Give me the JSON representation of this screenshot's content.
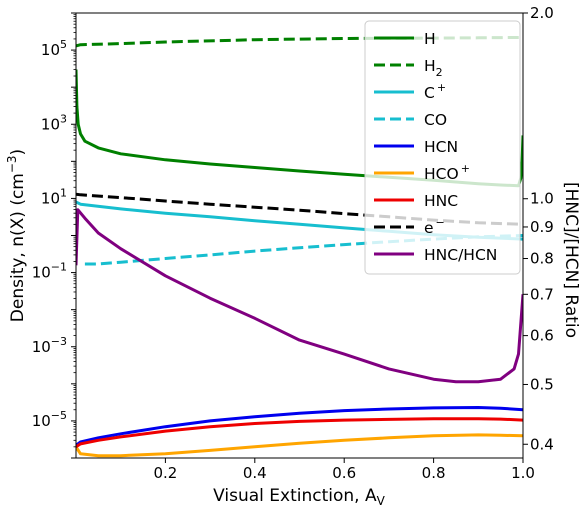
{
  "chart_data": {
    "type": "line",
    "xlabel": "Visual Extinction, A",
    "xlabel_sub": "V",
    "ylabel": "Density, n(X) (cm",
    "ylabel_sup": "−3",
    "ylabel_end": ")",
    "y2label": "[HNC]/[HCN] Ratio",
    "y2label_color": "#800080",
    "xlim": [
      0.0,
      1.0
    ],
    "ylim_log10": [
      -6.0,
      6.0
    ],
    "y_scale": "log",
    "y2lim": [
      0.38,
      2.0
    ],
    "y2_scale": "log",
    "xticks": [
      0.2,
      0.4,
      0.6,
      0.8,
      1.0
    ],
    "xtick_labels": [
      "0.2",
      "0.4",
      "0.6",
      "0.8",
      "1.0"
    ],
    "yticks": [
      {
        "mant": "10",
        "exp": "5",
        "exp_value": 5
      },
      {
        "mant": "10",
        "exp": "3",
        "exp_value": 3
      },
      {
        "mant": "10",
        "exp": "1",
        "exp_value": 1
      },
      {
        "mant": "10",
        "exp": "−1",
        "exp_value": -1
      },
      {
        "mant": "10",
        "exp": "−3",
        "exp_value": -3
      },
      {
        "mant": "10",
        "exp": "−5",
        "exp_value": -5
      }
    ],
    "y2ticks": [
      {
        "value": 2.0,
        "label": "2.0"
      },
      {
        "value": 1.0,
        "label": "1.0"
      },
      {
        "value": 0.9,
        "label": "0.9"
      },
      {
        "value": 0.8,
        "label": "0.8"
      },
      {
        "value": 0.7,
        "label": "0.7"
      },
      {
        "value": 0.6,
        "label": "0.6"
      },
      {
        "value": 0.5,
        "label": "0.5"
      },
      {
        "value": 0.4,
        "label": "0.4"
      }
    ],
    "grid": false,
    "legend_placement": "top-right",
    "series": [
      {
        "name": "H",
        "base": "H",
        "sup": "",
        "sub": "",
        "color": "#008000",
        "dash": "solid",
        "axis": "left",
        "x": [
          0.0,
          0.002,
          0.005,
          0.01,
          0.02,
          0.05,
          0.1,
          0.2,
          0.3,
          0.4,
          0.5,
          0.6,
          0.7,
          0.8,
          0.9,
          0.95,
          0.99,
          0.995,
          0.998,
          1.0
        ],
        "y": [
          30000,
          3000,
          1000,
          550,
          350,
          230,
          160,
          110,
          85,
          68,
          55,
          45,
          37,
          31,
          25,
          23,
          22,
          35,
          100,
          500
        ]
      },
      {
        "name": "H2",
        "base": "H",
        "sup": "",
        "sub": "2",
        "color": "#008000",
        "dash": "dashed",
        "axis": "left",
        "x": [
          0.0,
          0.01,
          0.1,
          0.2,
          0.4,
          0.6,
          0.8,
          0.9,
          1.0
        ],
        "y": [
          130000,
          140000,
          150000,
          165000,
          190000,
          205000,
          210000,
          215000,
          220000
        ]
      },
      {
        "name": "C+",
        "base": "C",
        "sup": "+",
        "sub": "",
        "color": "#17becf",
        "dash": "solid",
        "axis": "left",
        "x": [
          0.0,
          0.01,
          0.1,
          0.2,
          0.3,
          0.4,
          0.5,
          0.6,
          0.7,
          0.8,
          0.9,
          1.0
        ],
        "y": [
          8.0,
          7.0,
          5.2,
          4.0,
          3.2,
          2.5,
          2.0,
          1.6,
          1.3,
          1.05,
          0.9,
          0.8
        ]
      },
      {
        "name": "CO",
        "base": "CO",
        "sup": "",
        "sub": "",
        "color": "#17becf",
        "dash": "dashed",
        "axis": "left",
        "x": [
          0.02,
          0.05,
          0.1,
          0.2,
          0.3,
          0.4,
          0.5,
          0.6,
          0.7,
          0.8,
          0.9,
          1.0
        ],
        "y": [
          0.17,
          0.17,
          0.19,
          0.24,
          0.3,
          0.38,
          0.47,
          0.57,
          0.68,
          0.8,
          0.92,
          1.0
        ]
      },
      {
        "name": "HCN",
        "base": "HCN",
        "sup": "",
        "sub": "",
        "color": "#0000ee",
        "dash": "solid",
        "axis": "left",
        "x": [
          0.0,
          0.01,
          0.05,
          0.1,
          0.2,
          0.3,
          0.4,
          0.5,
          0.6,
          0.7,
          0.8,
          0.9,
          0.95,
          1.0
        ],
        "y": [
          2.2e-06,
          2.7e-06,
          3.5e-06,
          4.5e-06,
          7e-06,
          1e-05,
          1.3e-05,
          1.6e-05,
          1.9e-05,
          2.1e-05,
          2.25e-05,
          2.3e-05,
          2.2e-05,
          2e-05
        ]
      },
      {
        "name": "HCO+",
        "base": "HCO",
        "sup": "+",
        "sub": "",
        "color": "#ffa500",
        "dash": "solid",
        "axis": "left",
        "x": [
          0.0,
          0.01,
          0.05,
          0.1,
          0.2,
          0.3,
          0.4,
          0.5,
          0.6,
          0.7,
          0.8,
          0.9,
          0.95,
          1.0
        ],
        "y": [
          2e-06,
          1.3e-06,
          1.15e-06,
          1.15e-06,
          1.3e-06,
          1.6e-06,
          2e-06,
          2.5e-06,
          3e-06,
          3.5e-06,
          4e-06,
          4.2e-06,
          4.1e-06,
          4e-06
        ]
      },
      {
        "name": "HNC",
        "base": "HNC",
        "sup": "",
        "sub": "",
        "color": "#ee0000",
        "dash": "solid",
        "axis": "left",
        "x": [
          0.0,
          0.01,
          0.05,
          0.1,
          0.2,
          0.3,
          0.4,
          0.5,
          0.6,
          0.7,
          0.8,
          0.9,
          0.95,
          1.0
        ],
        "y": [
          2e-06,
          2.4e-06,
          3e-06,
          3.7e-06,
          5.3e-06,
          7e-06,
          8.5e-06,
          9.7e-06,
          1.05e-05,
          1.1e-05,
          1.15e-05,
          1.15e-05,
          1.12e-05,
          1.05e-05
        ]
      },
      {
        "name": "e−",
        "base": "e",
        "sup": "−",
        "sub": "",
        "color": "#000000",
        "dash": "dashed",
        "axis": "left",
        "x": [
          0.0,
          0.01,
          0.1,
          0.2,
          0.3,
          0.4,
          0.5,
          0.6,
          0.7,
          0.8,
          0.9,
          1.0
        ],
        "y": [
          13,
          12.5,
          10.5,
          8.5,
          7.0,
          5.8,
          4.8,
          3.9,
          3.2,
          2.6,
          2.2,
          2.0
        ]
      },
      {
        "name": "HNC/HCN",
        "base": "HNC/HCN",
        "sup": "",
        "sub": "",
        "color": "#800080",
        "dash": "solid",
        "axis": "right",
        "x": [
          0.0,
          0.004,
          0.02,
          0.05,
          0.1,
          0.2,
          0.3,
          0.4,
          0.5,
          0.6,
          0.7,
          0.8,
          0.85,
          0.9,
          0.95,
          0.98,
          0.99,
          1.0
        ],
        "y": [
          0.78,
          0.96,
          0.93,
          0.88,
          0.83,
          0.75,
          0.69,
          0.64,
          0.59,
          0.56,
          0.53,
          0.51,
          0.505,
          0.505,
          0.51,
          0.53,
          0.56,
          0.7
        ]
      }
    ]
  }
}
